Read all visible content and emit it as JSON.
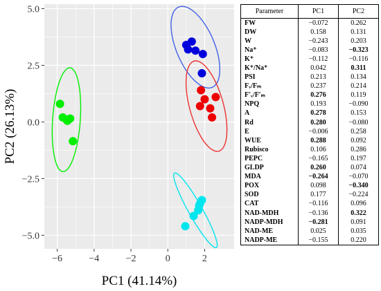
{
  "colors": {
    "green": "#00ee00",
    "cyan": "#00e5ee",
    "blue": "#0000dd",
    "red": "#ee0000",
    "ellipse_blue": "#4060e8",
    "ellipse_red": "#ee3030",
    "panel_bg": "#ebebeb",
    "grid": "#ffffff"
  },
  "chart_data": {
    "type": "scatter",
    "xlabel": "PC1 (41.14%)",
    "ylabel": "PC2 (26.13%)",
    "xlim": [
      -6.7,
      3.6
    ],
    "ylim": [
      -5.6,
      5.2
    ],
    "x_ticks": [
      -6,
      -4,
      -2,
      0,
      2
    ],
    "x_tick_labels": [
      "−6",
      "−4",
      "−2",
      "0",
      "2"
    ],
    "y_ticks": [
      -5.0,
      -2.5,
      0.0,
      2.5,
      5.0
    ],
    "y_tick_labels": [
      "−5.0",
      "−2.5",
      "0.0",
      "2.5",
      "5.0"
    ],
    "grid": true,
    "legend": "none",
    "series": [
      {
        "color_key": "green",
        "points": [
          [
            -5.85,
            0.8
          ],
          [
            -5.7,
            0.2
          ],
          [
            -5.5,
            0.1
          ],
          [
            -5.3,
            0.15
          ],
          [
            -5.45,
            0.05
          ],
          [
            -5.15,
            -0.85
          ]
        ],
        "ellipse": {
          "cx": -5.5,
          "cy": 0.1,
          "rx": 0.75,
          "ry": 2.3,
          "angle_deg": -5
        }
      },
      {
        "color_key": "blue",
        "points": [
          [
            1.0,
            3.4
          ],
          [
            1.3,
            3.55
          ],
          [
            1.1,
            3.2
          ],
          [
            1.5,
            3.15
          ],
          [
            1.9,
            3.0
          ],
          [
            1.85,
            2.15
          ]
        ],
        "ellipse": {
          "cx": 1.5,
          "cy": 3.3,
          "rx": 1.0,
          "ry": 2.0,
          "angle_deg": 30
        }
      },
      {
        "color_key": "red",
        "points": [
          [
            1.8,
            1.4
          ],
          [
            2.0,
            1.0
          ],
          [
            2.3,
            0.6
          ],
          [
            2.4,
            0.2
          ],
          [
            2.6,
            1.1
          ],
          [
            1.75,
            0.7
          ]
        ],
        "ellipse": {
          "cx": 2.1,
          "cy": 0.7,
          "rx": 0.9,
          "ry": 2.1,
          "angle_deg": 20
        }
      },
      {
        "color_key": "cyan",
        "points": [
          [
            0.95,
            -4.6
          ],
          [
            1.4,
            -4.15
          ],
          [
            1.65,
            -3.9
          ],
          [
            1.75,
            -3.6
          ],
          [
            1.85,
            -3.45
          ],
          [
            1.7,
            -3.7
          ]
        ],
        "ellipse": {
          "cx": 1.5,
          "cy": -3.9,
          "rx": 0.35,
          "ry": 2.0,
          "angle_deg": 35
        }
      }
    ]
  },
  "table": {
    "headers": [
      "Parameter",
      "PC1",
      "PC2"
    ],
    "rows": [
      {
        "param": "FW",
        "pc1": "−0.072",
        "pc2": "0.262",
        "b1": false,
        "b2": false
      },
      {
        "param": "DW",
        "pc1": "0.158",
        "pc2": "0.131",
        "b1": false,
        "b2": false
      },
      {
        "param": "W",
        "pc1": "−0.243",
        "pc2": "0.203",
        "b1": false,
        "b2": false
      },
      {
        "param": "Na⁺",
        "pc1": "−0.083",
        "pc2": "−0.323",
        "b1": false,
        "b2": true
      },
      {
        "param": "K⁺",
        "pc1": "−0.112",
        "pc2": "−0.116",
        "b1": false,
        "b2": false
      },
      {
        "param": "K⁺/Na⁺",
        "pc1": "0.042",
        "pc2": "0.311",
        "b1": false,
        "b2": true
      },
      {
        "param": "PSI",
        "pc1": "0.213",
        "pc2": "0.134",
        "b1": false,
        "b2": false
      },
      {
        "param": "Fᵥ/Fₘ",
        "pc1": "0.237",
        "pc2": "0.214",
        "b1": false,
        "b2": false
      },
      {
        "param": "F′ᵥ/F′ₘ",
        "pc1": "0.276",
        "pc2": "0.119",
        "b1": true,
        "b2": false
      },
      {
        "param": "NPQ",
        "pc1": "0.193",
        "pc2": "−0.090",
        "b1": false,
        "b2": false
      },
      {
        "param": "A",
        "pc1": "0.278",
        "pc2": "0.153",
        "b1": true,
        "b2": false
      },
      {
        "param": "Rd",
        "pc1": "0.280",
        "pc2": "−0.080",
        "b1": true,
        "b2": false
      },
      {
        "param": "E",
        "pc1": "−0.006",
        "pc2": "0.258",
        "b1": false,
        "b2": false
      },
      {
        "param": "WUE",
        "pc1": "0.288",
        "pc2": "0.092",
        "b1": true,
        "b2": false
      },
      {
        "param": "Rubisco",
        "pc1": "0.106",
        "pc2": "0.286",
        "b1": false,
        "b2": false
      },
      {
        "param": "PEPC",
        "pc1": "−0.165",
        "pc2": "0.197",
        "b1": false,
        "b2": false
      },
      {
        "param": "GLDP",
        "pc1": "0.260",
        "pc2": "0.074",
        "b1": true,
        "b2": false
      },
      {
        "param": "MDA",
        "pc1": "−0.264",
        "pc2": "−0.070",
        "b1": true,
        "b2": false
      },
      {
        "param": "POX",
        "pc1": "0.098",
        "pc2": "−0.340",
        "b1": false,
        "b2": true
      },
      {
        "param": "SOD",
        "pc1": "0.177",
        "pc2": "−0.224",
        "b1": false,
        "b2": false
      },
      {
        "param": "CAT",
        "pc1": "−0.116",
        "pc2": "0.096",
        "b1": false,
        "b2": false
      },
      {
        "param": "NAD-MDH",
        "pc1": "−0.136",
        "pc2": "0.322",
        "b1": false,
        "b2": true
      },
      {
        "param": "NADP-MDH",
        "pc1": "−0.281",
        "pc2": "0.091",
        "b1": true,
        "b2": false
      },
      {
        "param": "NAD-ME",
        "pc1": "0.025",
        "pc2": "0.035",
        "b1": false,
        "b2": false
      },
      {
        "param": "NADP-ME",
        "pc1": "−0.155",
        "pc2": "0.220",
        "b1": false,
        "b2": false
      }
    ]
  }
}
